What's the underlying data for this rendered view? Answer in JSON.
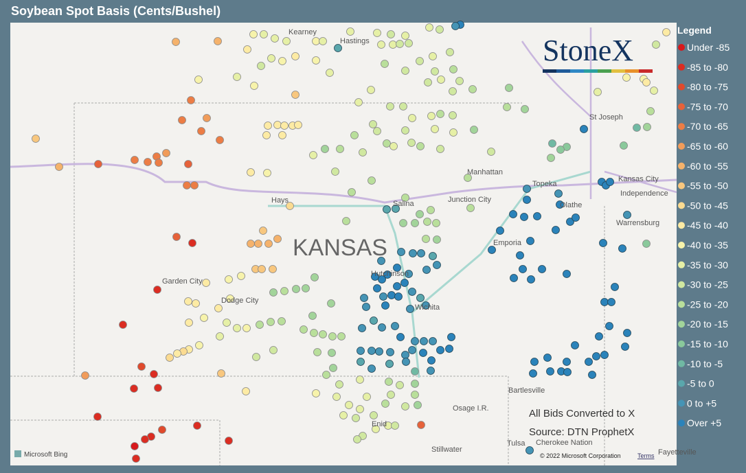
{
  "title": "Soybean Spot Basis (Cents/Bushel)",
  "logo": "StoneX",
  "legend": {
    "title": "Legend",
    "items": [
      {
        "label": "Under -85",
        "color": "#d7191c"
      },
      {
        "label": "-85 to -80",
        "color": "#db2d22"
      },
      {
        "label": "-80 to -75",
        "color": "#e04a2c"
      },
      {
        "label": "-75 to -70",
        "color": "#e6623a"
      },
      {
        "label": "-70 to -65",
        "color": "#ec7d45"
      },
      {
        "label": "-65 to -60",
        "color": "#f19c5a"
      },
      {
        "label": "-60 to -55",
        "color": "#f5b26b"
      },
      {
        "label": "-55 to -50",
        "color": "#f8c77e"
      },
      {
        "label": "-50 to -45",
        "color": "#fbdb91"
      },
      {
        "label": "-45 to -40",
        "color": "#fdeba4"
      },
      {
        "label": "-40 to -35",
        "color": "#f7f3ab"
      },
      {
        "label": "-35 to -30",
        "color": "#e6f0a6"
      },
      {
        "label": "-30 to -25",
        "color": "#d0e8a0"
      },
      {
        "label": "-25 to -20",
        "color": "#b9df9b"
      },
      {
        "label": "-20 to -15",
        "color": "#a2d49a"
      },
      {
        "label": "-15 to -10",
        "color": "#8ac99b"
      },
      {
        "label": "-10 to -5",
        "color": "#70b9a3"
      },
      {
        "label": "-5 to 0",
        "color": "#5aa7ac"
      },
      {
        "label": "0 to +5",
        "color": "#4594b5"
      },
      {
        "label": "Over +5",
        "color": "#2b83ba"
      }
    ]
  },
  "places": [
    "Kearney",
    "Hastings",
    "St Joseph",
    "Manhattan",
    "Topeka",
    "Kansas City",
    "Independence",
    "Hays",
    "Salina",
    "Junction City",
    "Olathe",
    "Warrensburg",
    "Emporia",
    "Hutchinson",
    "Garden City",
    "Dodge City",
    "Wichita",
    "Bartlesville",
    "Osage I.R.",
    "Enid",
    "Tulsa",
    "Cherokee Nation",
    "Stillwater",
    "Fayetteville"
  ],
  "state_label": "KANSAS",
  "notes": [
    "All Bids Converted to X",
    "Source: DTN ProphetX"
  ],
  "attribution": {
    "provider": "Microsoft Bing",
    "copyright": "© 2022 Microsoft Corporation",
    "terms": "Terms"
  }
}
